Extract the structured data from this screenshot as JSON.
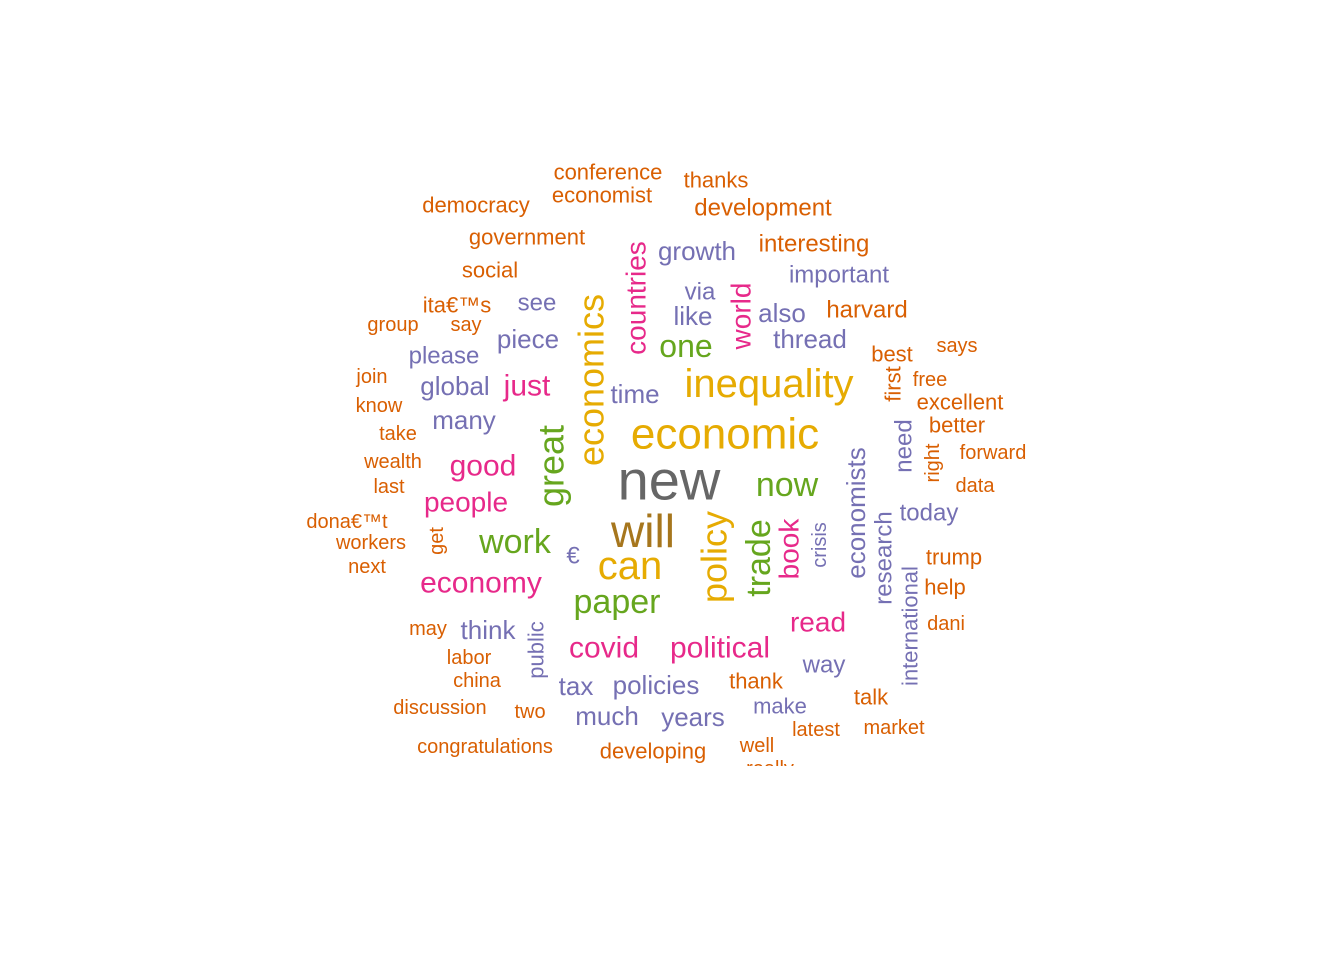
{
  "palette": {
    "gray": "#666666",
    "olive": "#A6761D",
    "gold": "#E6AB02",
    "green": "#66A61E",
    "pink": "#E7298A",
    "purple": "#7570B3",
    "orange": "#D95F02"
  },
  "words": [
    {
      "text": "new",
      "color": "gray"
    },
    {
      "text": "will",
      "color": "olive"
    },
    {
      "text": "economic",
      "color": "gold"
    },
    {
      "text": "inequality",
      "color": "gold"
    },
    {
      "text": "economics",
      "color": "gold"
    },
    {
      "text": "can",
      "color": "gold"
    },
    {
      "text": "policy",
      "color": "gold"
    },
    {
      "text": "paper",
      "color": "green"
    },
    {
      "text": "trade",
      "color": "green"
    },
    {
      "text": "now",
      "color": "green"
    },
    {
      "text": "great",
      "color": "green"
    },
    {
      "text": "work",
      "color": "green"
    },
    {
      "text": "one",
      "color": "green"
    },
    {
      "text": "countries",
      "color": "pink"
    },
    {
      "text": "world",
      "color": "pink"
    },
    {
      "text": "just",
      "color": "pink"
    },
    {
      "text": "good",
      "color": "pink"
    },
    {
      "text": "people",
      "color": "pink"
    },
    {
      "text": "economy",
      "color": "pink"
    },
    {
      "text": "covid",
      "color": "pink"
    },
    {
      "text": "political",
      "color": "pink"
    },
    {
      "text": "read",
      "color": "pink"
    },
    {
      "text": "book",
      "color": "pink"
    },
    {
      "text": "growth",
      "color": "purple"
    },
    {
      "text": "like",
      "color": "purple"
    },
    {
      "text": "via",
      "color": "purple"
    },
    {
      "text": "also",
      "color": "purple"
    },
    {
      "text": "thread",
      "color": "purple"
    },
    {
      "text": "important",
      "color": "purple"
    },
    {
      "text": "see",
      "color": "purple"
    },
    {
      "text": "piece",
      "color": "purple"
    },
    {
      "text": "please",
      "color": "purple"
    },
    {
      "text": "global",
      "color": "purple"
    },
    {
      "text": "many",
      "color": "purple"
    },
    {
      "text": "time",
      "color": "purple"
    },
    {
      "text": "economists",
      "color": "purple"
    },
    {
      "text": "research",
      "color": "purple"
    },
    {
      "text": "need",
      "color": "purple"
    },
    {
      "text": "today",
      "color": "purple"
    },
    {
      "text": "crisis",
      "color": "purple"
    },
    {
      "text": "international",
      "color": "purple"
    },
    {
      "text": "think",
      "color": "purple"
    },
    {
      "text": "public",
      "color": "purple"
    },
    {
      "text": "tax",
      "color": "purple"
    },
    {
      "text": "policies",
      "color": "purple"
    },
    {
      "text": "much",
      "color": "purple"
    },
    {
      "text": "years",
      "color": "purple"
    },
    {
      "text": "make",
      "color": "purple"
    },
    {
      "text": "way",
      "color": "purple"
    },
    {
      "text": "€",
      "color": "purple"
    },
    {
      "text": "conference",
      "color": "orange"
    },
    {
      "text": "economist",
      "color": "orange"
    },
    {
      "text": "thanks",
      "color": "orange"
    },
    {
      "text": "democracy",
      "color": "orange"
    },
    {
      "text": "development",
      "color": "orange"
    },
    {
      "text": "government",
      "color": "orange"
    },
    {
      "text": "interesting",
      "color": "orange"
    },
    {
      "text": "social",
      "color": "orange"
    },
    {
      "text": "ita€™s",
      "color": "orange"
    },
    {
      "text": "say",
      "color": "orange"
    },
    {
      "text": "group",
      "color": "orange"
    },
    {
      "text": "harvard",
      "color": "orange"
    },
    {
      "text": "best",
      "color": "orange"
    },
    {
      "text": "says",
      "color": "orange"
    },
    {
      "text": "first",
      "color": "orange"
    },
    {
      "text": "free",
      "color": "orange"
    },
    {
      "text": "excellent",
      "color": "orange"
    },
    {
      "text": "join",
      "color": "orange"
    },
    {
      "text": "know",
      "color": "orange"
    },
    {
      "text": "take",
      "color": "orange"
    },
    {
      "text": "wealth",
      "color": "orange"
    },
    {
      "text": "last",
      "color": "orange"
    },
    {
      "text": "better",
      "color": "orange"
    },
    {
      "text": "right",
      "color": "orange"
    },
    {
      "text": "forward",
      "color": "orange"
    },
    {
      "text": "data",
      "color": "orange"
    },
    {
      "text": "dona€™t",
      "color": "orange"
    },
    {
      "text": "get",
      "color": "orange"
    },
    {
      "text": "workers",
      "color": "orange"
    },
    {
      "text": "next",
      "color": "orange"
    },
    {
      "text": "trump",
      "color": "orange"
    },
    {
      "text": "help",
      "color": "orange"
    },
    {
      "text": "dani",
      "color": "orange"
    },
    {
      "text": "may",
      "color": "orange"
    },
    {
      "text": "labor",
      "color": "orange"
    },
    {
      "text": "china",
      "color": "orange"
    },
    {
      "text": "thank",
      "color": "orange"
    },
    {
      "text": "talk",
      "color": "orange"
    },
    {
      "text": "discussion",
      "color": "orange"
    },
    {
      "text": "two",
      "color": "orange"
    },
    {
      "text": "latest",
      "color": "orange"
    },
    {
      "text": "market",
      "color": "orange"
    },
    {
      "text": "congratulations",
      "color": "orange"
    },
    {
      "text": "developing",
      "color": "orange"
    },
    {
      "text": "well",
      "color": "orange"
    },
    {
      "text": "really",
      "color": "orange"
    }
  ]
}
